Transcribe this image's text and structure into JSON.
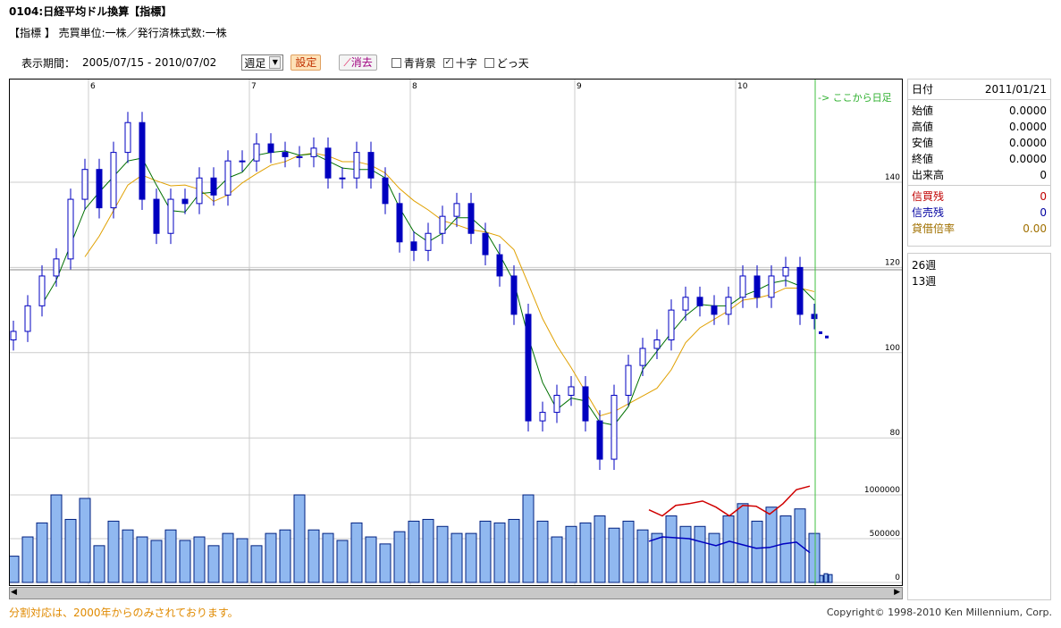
{
  "header": {
    "title": "0104:日経平均ドル換算【指標】",
    "subtitle": "【指標 】 売買単位:一株／発行済株式数:一株"
  },
  "toolbar": {
    "period_label": "表示期間：",
    "period_value": "2005/07/15 - 2010/07/02",
    "interval_select": "週足",
    "set_button": "設定",
    "erase_button": "消去",
    "checkboxes": [
      {
        "label": "青背景",
        "checked": false
      },
      {
        "label": "十字",
        "checked": true
      },
      {
        "label": "どっ天",
        "checked": false
      }
    ]
  },
  "info": {
    "date_label": "日付",
    "date_value": "2011/01/21",
    "rows": [
      {
        "label": "始値",
        "value": "0.0000"
      },
      {
        "label": "高値",
        "value": "0.0000"
      },
      {
        "label": "安値",
        "value": "0.0000"
      },
      {
        "label": "終値",
        "value": "0.0000"
      },
      {
        "label": "出来高",
        "value": "0"
      }
    ],
    "margin": [
      {
        "label": "信買残",
        "value": "0",
        "color": "#c00000"
      },
      {
        "label": "信売残",
        "value": "0",
        "color": "#0000a0"
      },
      {
        "label": "貸借倍率",
        "value": "0.00",
        "color": "#a07000"
      }
    ]
  },
  "legend": [
    "26週",
    "13週"
  ],
  "footer": {
    "note": "分割対応は、2000年からのみされております。",
    "copyright": "Copyright© 1998-2010 Ken Millennium, Corp."
  },
  "chart_data": {
    "type": "candlestick",
    "daily_marker_label": "-> ここから日足",
    "x_ticks": [
      "6",
      "7",
      "8",
      "9",
      "10"
    ],
    "price_axis": {
      "ticks": [
        80,
        100,
        120,
        140
      ],
      "ylim": [
        68,
        160
      ]
    },
    "volume_axis": {
      "ticks": [
        "0",
        "500000",
        "1000000"
      ],
      "ylim": [
        0,
        1000000
      ]
    },
    "colors": {
      "candle": "#0000c0",
      "volume": "#90b8f0",
      "ma26": "#e0a000",
      "ma13": "#007000",
      "margin_buy": "#d00000",
      "margin_sell": "#0000c0",
      "daily_line": "#40c040"
    },
    "close": [
      105,
      111,
      118,
      122,
      136,
      143,
      134,
      147,
      154,
      136,
      128,
      136,
      135,
      141,
      137,
      145,
      145,
      149,
      147,
      146,
      146,
      148,
      141,
      141,
      147,
      141,
      135,
      126,
      124,
      128,
      132,
      135,
      128,
      123,
      118,
      109,
      84,
      86,
      90,
      92,
      84,
      75,
      90,
      97,
      101,
      103,
      110,
      113,
      111,
      109,
      113,
      118,
      113,
      118,
      120,
      109,
      108
    ],
    "volume": [
      300000,
      520000,
      680000,
      1000000,
      720000,
      960000,
      420000,
      700000,
      600000,
      520000,
      480000,
      600000,
      480000,
      520000,
      420000,
      560000,
      500000,
      420000,
      560000,
      600000,
      1000000,
      600000,
      560000,
      480000,
      680000,
      520000,
      440000,
      580000,
      700000,
      720000,
      640000,
      560000,
      560000,
      700000,
      680000,
      720000,
      1000000,
      700000,
      520000,
      640000,
      680000,
      760000,
      620000,
      700000,
      600000,
      560000,
      760000,
      640000,
      640000,
      560000,
      760000,
      900000,
      700000,
      860000,
      760000,
      840000,
      560000
    ],
    "margin_buy": [
      830000,
      760000,
      880000,
      900000,
      930000,
      860000,
      760000,
      880000,
      870000,
      780000,
      900000,
      1060000,
      1100000
    ],
    "margin_sell": [
      470000,
      520000,
      510000,
      500000,
      460000,
      420000,
      470000,
      430000,
      390000,
      400000,
      440000,
      460000,
      340000
    ],
    "daily_volume": [
      80000,
      100000,
      90000
    ]
  }
}
